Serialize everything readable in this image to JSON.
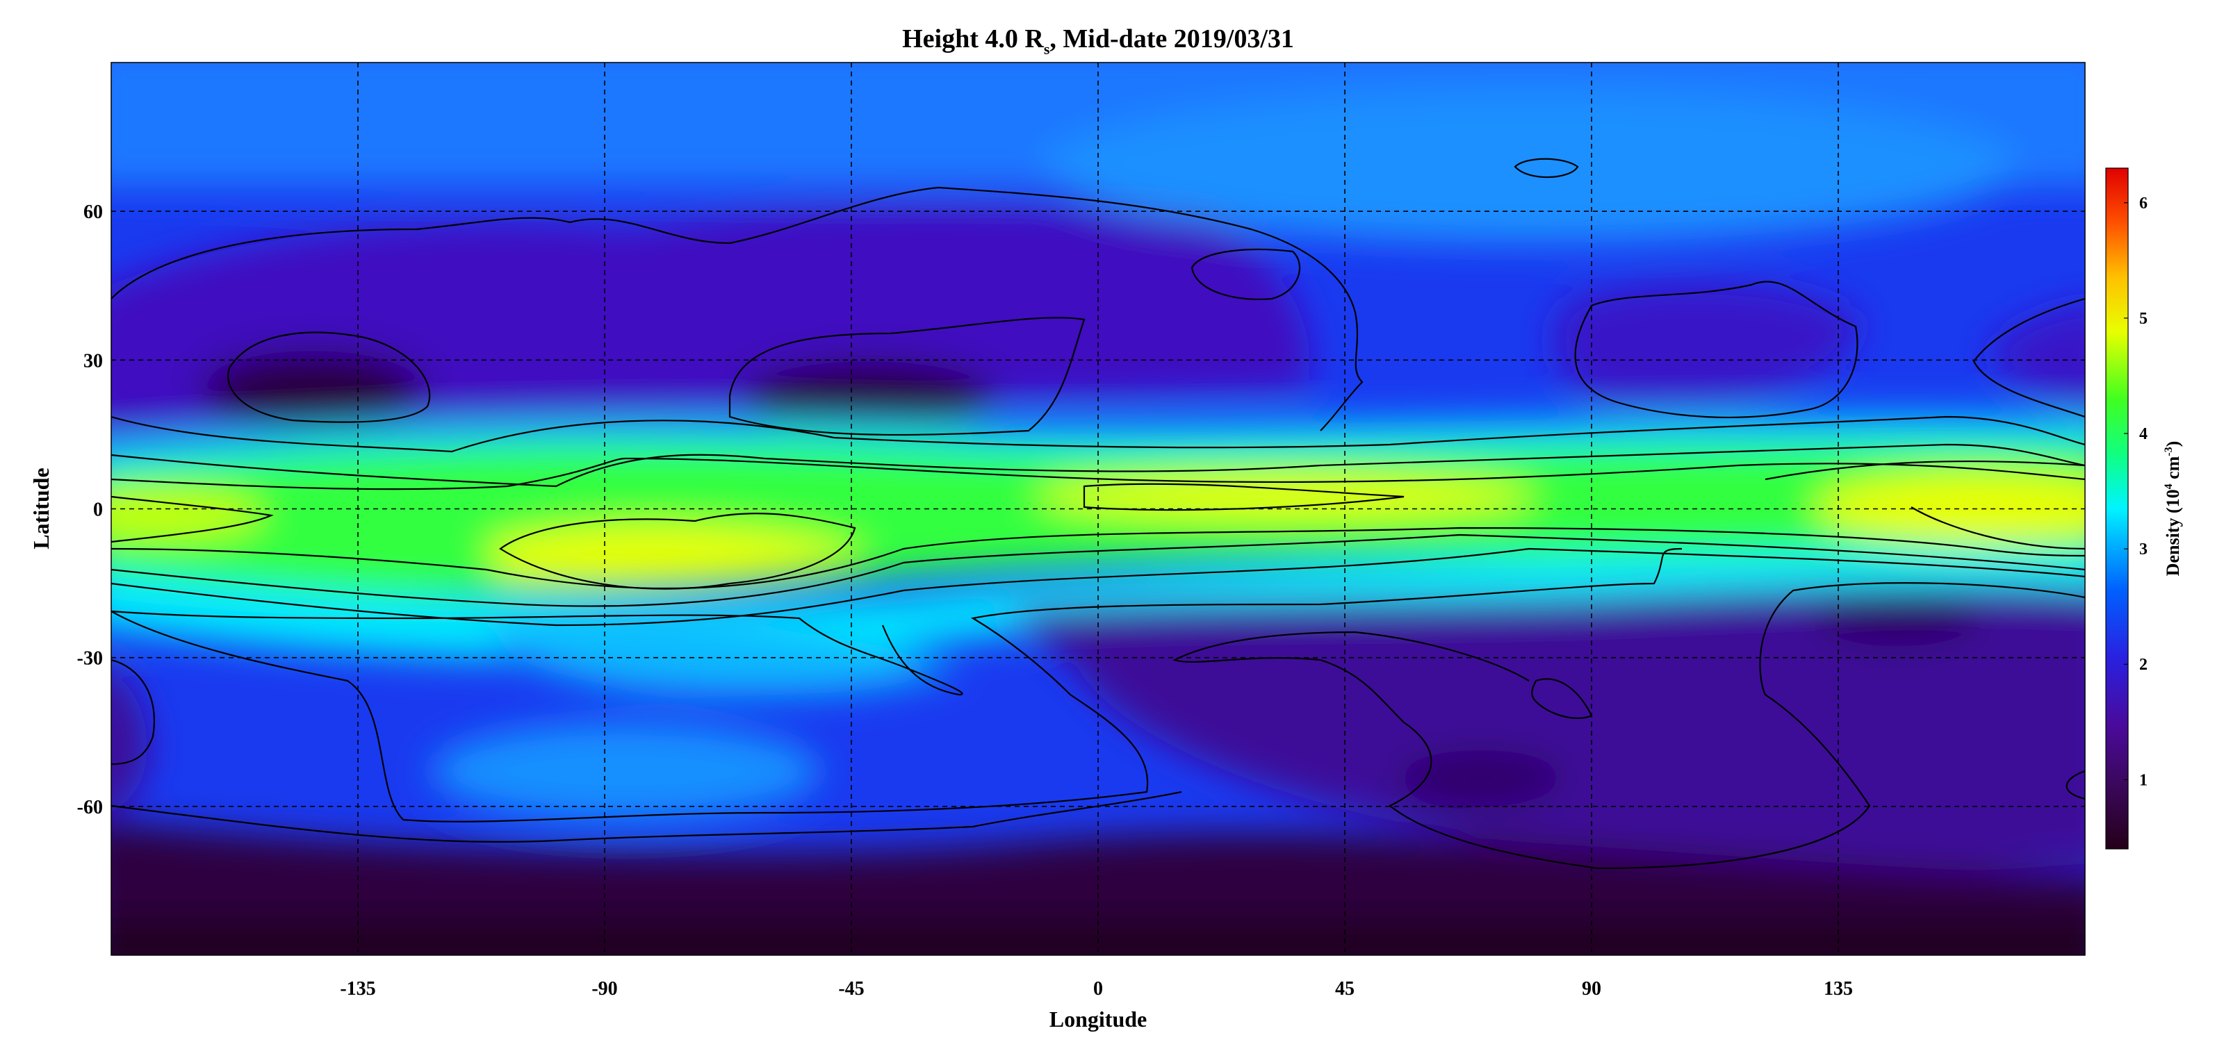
{
  "chart_data": {
    "type": "heatmap",
    "title": {
      "prefix": "Height 4.0 R",
      "subscript": "s",
      "suffix": ", Mid-date 2019/03/31"
    },
    "xlabel": "Longitude",
    "ylabel": "Latitude",
    "xlim": [
      -180,
      180
    ],
    "ylim": [
      -90,
      90
    ],
    "x_ticks": [
      -135,
      -90,
      -45,
      0,
      45,
      90,
      135
    ],
    "x_tick_labels": [
      "-135",
      "-90",
      "-45",
      "0",
      "45",
      "90",
      "135"
    ],
    "y_ticks": [
      -60,
      -30,
      0,
      30,
      60
    ],
    "y_tick_labels": [
      "-60",
      "-30",
      "0",
      "30",
      "60"
    ],
    "grid": true,
    "colorbar": {
      "label": "Density (10",
      "label_sup": "4",
      "label_mid": " cm",
      "label_sup2": "-3",
      "label_end": ")",
      "range": [
        0.4,
        6.3
      ],
      "ticks": [
        1,
        2,
        3,
        4,
        5,
        6
      ],
      "tick_labels": [
        "1",
        "2",
        "3",
        "4",
        "5",
        "6"
      ],
      "colors": [
        "#250018",
        "#4a0a7a",
        "#3a10c8",
        "#1a40ff",
        "#00a8ff",
        "#00f0ff",
        "#20ff60",
        "#80ff00",
        "#f0ff00",
        "#ffa000",
        "#ff4000",
        "#e80000"
      ]
    },
    "features": [
      {
        "name": "equatorial dense band",
        "x_range": [
          -180,
          180
        ],
        "y_center": 0,
        "peak_density": 5.2
      },
      {
        "name": "northern low-density pocket",
        "x": -135,
        "y": 22,
        "density": 0.8
      },
      {
        "name": "northern low-density pocket",
        "x": -45,
        "y": 22,
        "density": 0.8
      },
      {
        "name": "southern low-density region",
        "x": 120,
        "y": -40,
        "density": 1.0
      },
      {
        "name": "polar south minimum",
        "x": 0,
        "y": -80,
        "density": 0.6
      }
    ]
  }
}
